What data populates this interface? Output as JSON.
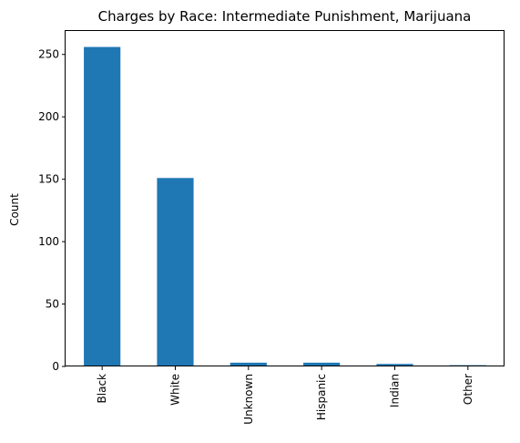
{
  "chart_data": {
    "type": "bar",
    "title": "Charges by Race: Intermediate Punishment, Marijuana",
    "xlabel": "",
    "ylabel": "Count",
    "categories": [
      "Black",
      "White",
      "Unknown",
      "Hispanic",
      "Indian",
      "Other"
    ],
    "values": [
      256,
      151,
      3,
      3,
      2,
      1
    ],
    "ylim": [
      0,
      268.8
    ],
    "yticks": [
      0,
      50,
      100,
      150,
      200,
      250
    ],
    "bar_color": "#1f77b4",
    "grid": false,
    "legend": "none"
  }
}
